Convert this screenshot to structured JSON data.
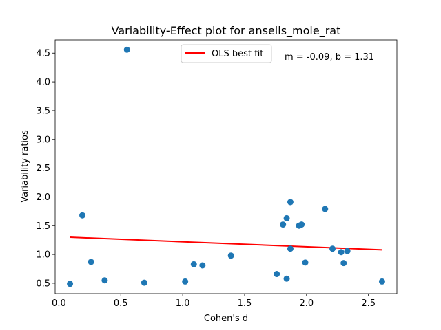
{
  "chart_data": {
    "type": "scatter",
    "title": "Variability-Effect plot for ansells_mole_rat",
    "xlabel": "Cohen's d",
    "ylabel": "Variability ratios",
    "xlim": [
      -0.03,
      2.73
    ],
    "ylim": [
      0.32,
      4.73
    ],
    "xticks": [
      0.0,
      0.5,
      1.0,
      1.5,
      2.0,
      2.5
    ],
    "xtick_labels": [
      "0.0",
      "0.5",
      "1.0",
      "1.5",
      "2.0",
      "2.5"
    ],
    "yticks": [
      0.5,
      1.0,
      1.5,
      2.0,
      2.5,
      3.0,
      3.5,
      4.0,
      4.5
    ],
    "ytick_labels": [
      "0.5",
      "1.0",
      "1.5",
      "2.0",
      "2.5",
      "3.0",
      "3.5",
      "4.0",
      "4.5"
    ],
    "grid": false,
    "legend": {
      "position": "top-center",
      "entries": [
        "OLS best fit"
      ]
    },
    "annotation": "m = -0.09, b = 1.31",
    "colors": {
      "points": "#1f77b4",
      "fit_line": "#ff0000"
    },
    "series": [
      {
        "name": "",
        "kind": "scatter",
        "points": [
          [
            0.09,
            0.49
          ],
          [
            0.19,
            1.68
          ],
          [
            0.26,
            0.87
          ],
          [
            0.37,
            0.55
          ],
          [
            0.55,
            4.56
          ],
          [
            0.69,
            0.51
          ],
          [
            1.02,
            0.53
          ],
          [
            1.09,
            0.83
          ],
          [
            1.16,
            0.81
          ],
          [
            1.39,
            0.98
          ],
          [
            1.76,
            0.66
          ],
          [
            1.81,
            1.52
          ],
          [
            1.84,
            1.63
          ],
          [
            1.84,
            0.58
          ],
          [
            1.87,
            1.91
          ],
          [
            1.87,
            1.1
          ],
          [
            1.94,
            1.5
          ],
          [
            1.96,
            1.52
          ],
          [
            1.99,
            0.86
          ],
          [
            2.15,
            1.79
          ],
          [
            2.21,
            1.1
          ],
          [
            2.28,
            1.04
          ],
          [
            2.3,
            0.85
          ],
          [
            2.33,
            1.06
          ],
          [
            2.61,
            0.53
          ]
        ]
      },
      {
        "name": "OLS best fit",
        "kind": "line",
        "points": [
          [
            0.09,
            1.3
          ],
          [
            2.61,
            1.08
          ]
        ]
      }
    ]
  }
}
